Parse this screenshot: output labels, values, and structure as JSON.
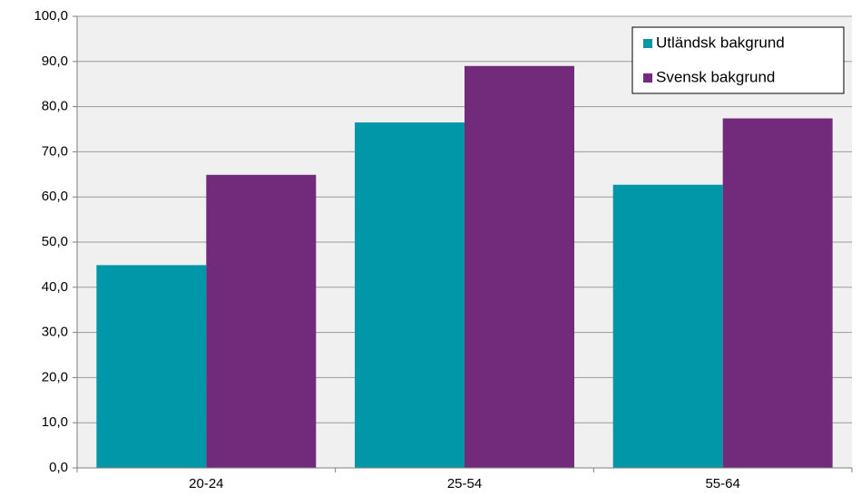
{
  "chart_data": {
    "type": "bar",
    "categories": [
      "20-24",
      "25-54",
      "55-64"
    ],
    "series": [
      {
        "name": "Utländsk bakgrund",
        "color": "#0097a8",
        "values": [
          44.9,
          76.5,
          62.7
        ]
      },
      {
        "name": "Svensk bakgrund",
        "color": "#722a7a",
        "values": [
          64.9,
          89.0,
          77.4
        ]
      }
    ],
    "ylim": [
      0,
      100
    ],
    "yticks": [
      {
        "value": 0,
        "label": "0,0"
      },
      {
        "value": 10,
        "label": "10,0"
      },
      {
        "value": 20,
        "label": "20,0"
      },
      {
        "value": 30,
        "label": "30,0"
      },
      {
        "value": 40,
        "label": "40,0"
      },
      {
        "value": 50,
        "label": "50,0"
      },
      {
        "value": 60,
        "label": "60,0"
      },
      {
        "value": 70,
        "label": "70,0"
      },
      {
        "value": 80,
        "label": "80,0"
      },
      {
        "value": 90,
        "label": "90,0"
      },
      {
        "value": 100,
        "label": "100,0"
      }
    ],
    "grid": true,
    "legend": "top-right"
  }
}
